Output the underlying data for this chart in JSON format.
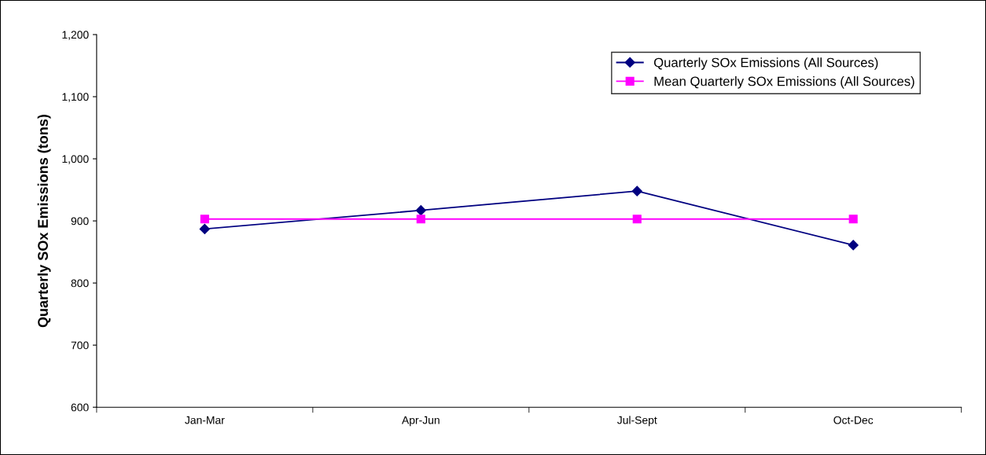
{
  "chart_data": {
    "type": "line",
    "ylabel": "Quarterly SOx Emissions (tons)",
    "categories": [
      "Jan-Mar",
      "Apr-Jun",
      "Jul-Sept",
      "Oct-Dec"
    ],
    "series": [
      {
        "name": "Quarterly SOx Emissions (All Sources)",
        "color": "#000080",
        "values": [
          887,
          917,
          948,
          861
        ],
        "marker": "diamond"
      },
      {
        "name": "Mean Quarterly SOx Emissions (All Sources)",
        "color": "#ff00ff",
        "values": [
          903,
          903,
          903,
          903
        ],
        "marker": "square"
      }
    ],
    "ylim": [
      600,
      1200
    ],
    "yticks": [
      {
        "value": 600,
        "label": "600"
      },
      {
        "value": 700,
        "label": "700"
      },
      {
        "value": 800,
        "label": "800"
      },
      {
        "value": 900,
        "label": "900"
      },
      {
        "value": 1000,
        "label": "1,000"
      },
      {
        "value": 1100,
        "label": "1,100"
      },
      {
        "value": 1200,
        "label": "1,200"
      }
    ],
    "grid": false,
    "legend": "top right",
    "line_style": "solid"
  }
}
